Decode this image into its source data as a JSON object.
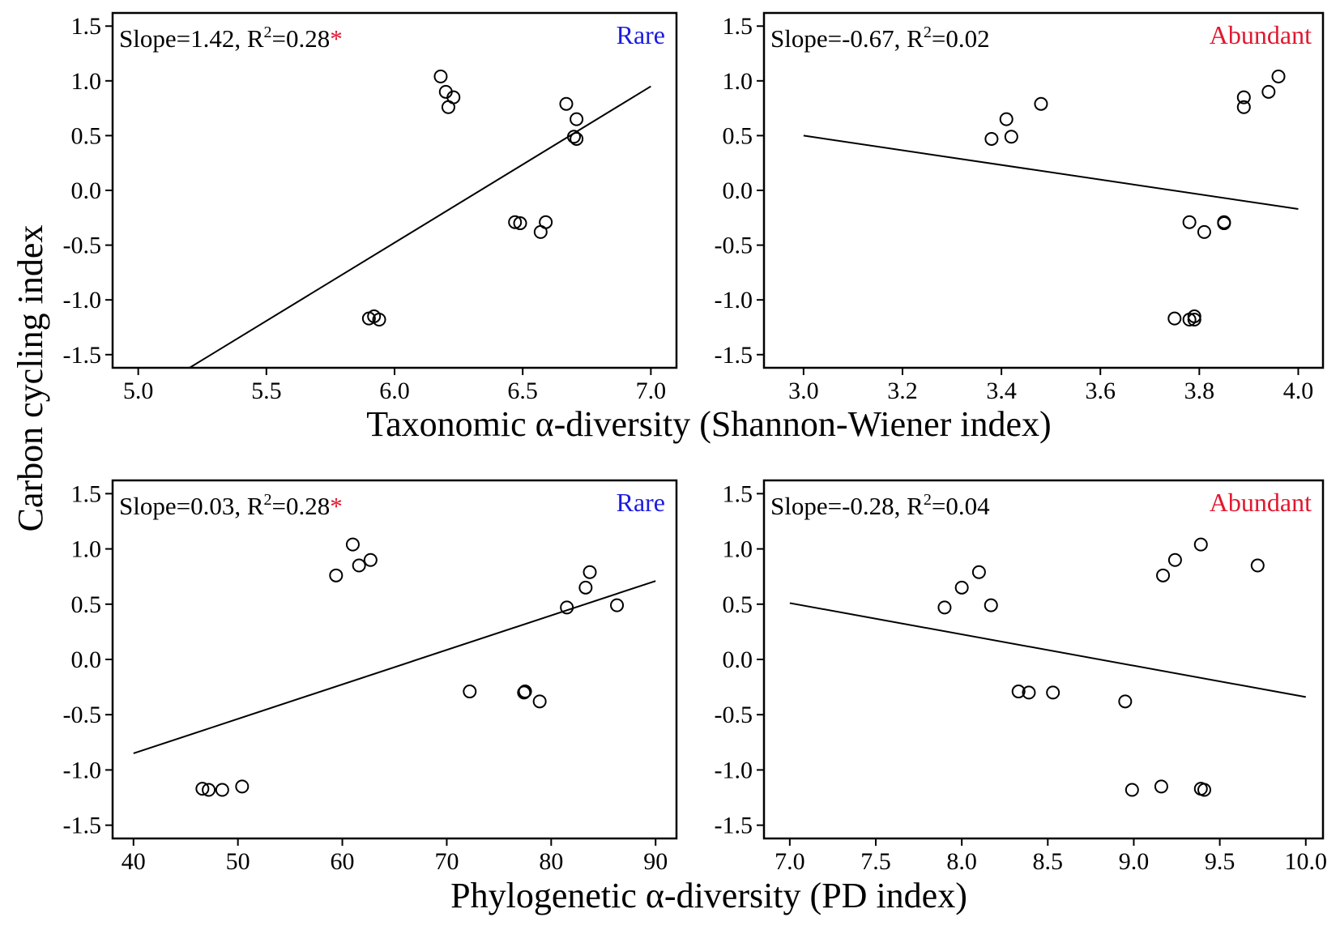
{
  "y_axis_title": "Carbon cycling index",
  "x_axis_title_top": "Taxonomic α-diversity (Shannon-Wiener index)",
  "x_axis_title_bottom": "Phylogenetic α-diversity (PD index)",
  "colors": {
    "rare": "#1a1adf",
    "abundant": "#e0182f",
    "significance": "#e0182f"
  },
  "chart_data": [
    {
      "type": "scatter",
      "id": "taxonomic-rare",
      "annotation": {
        "prefix": "Slope=1.42, R",
        "sup": "2",
        "suffix": "=0.28",
        "star": "*"
      },
      "group_label": "Rare",
      "group_color": "#1a1adf",
      "xlim": [
        4.9,
        7.1
      ],
      "ylim": [
        -1.62,
        1.62
      ],
      "xticks": [
        5.0,
        5.5,
        6.0,
        6.5,
        7.0
      ],
      "xtick_labels": [
        "5.0",
        "5.5",
        "6.0",
        "6.5",
        "7.0"
      ],
      "yticks": [
        1.5,
        1.0,
        0.5,
        0.0,
        -0.5,
        -1.0,
        -1.5
      ],
      "ytick_labels": [
        "1.5",
        "1.0",
        "0.5",
        "0.0",
        "-0.5",
        "-1.0",
        "-1.5"
      ],
      "fit": {
        "x1": 5.2,
        "y1": -1.62,
        "x2": 7.0,
        "y2": 0.95
      },
      "points": [
        [
          6.18,
          1.04
        ],
        [
          6.2,
          0.9
        ],
        [
          6.23,
          0.85
        ],
        [
          6.21,
          0.76
        ],
        [
          6.67,
          0.79
        ],
        [
          6.71,
          0.65
        ],
        [
          6.7,
          0.49
        ],
        [
          6.71,
          0.47
        ],
        [
          6.47,
          -0.29
        ],
        [
          6.49,
          -0.3
        ],
        [
          6.59,
          -0.29
        ],
        [
          6.57,
          -0.38
        ],
        [
          5.9,
          -1.17
        ],
        [
          5.92,
          -1.15
        ],
        [
          5.94,
          -1.18
        ]
      ]
    },
    {
      "type": "scatter",
      "id": "taxonomic-abundant",
      "annotation": {
        "prefix": "Slope=-0.67, R",
        "sup": "2",
        "suffix": "=0.02",
        "star": ""
      },
      "group_label": "Abundant",
      "group_color": "#e0182f",
      "xlim": [
        2.92,
        4.05
      ],
      "ylim": [
        -1.62,
        1.62
      ],
      "xticks": [
        3.0,
        3.2,
        3.4,
        3.6,
        3.8,
        4.0
      ],
      "xtick_labels": [
        "3.0",
        "3.2",
        "3.4",
        "3.6",
        "3.8",
        "4.0"
      ],
      "yticks": [
        1.5,
        1.0,
        0.5,
        0.0,
        -0.5,
        -1.0,
        -1.5
      ],
      "ytick_labels": [
        "1.5",
        "1.0",
        "0.5",
        "0.0",
        "-0.5",
        "-1.0",
        "-1.5"
      ],
      "fit": {
        "x1": 3.0,
        "y1": 0.5,
        "x2": 4.0,
        "y2": -0.17
      },
      "points": [
        [
          3.96,
          1.04
        ],
        [
          3.94,
          0.9
        ],
        [
          3.89,
          0.85
        ],
        [
          3.89,
          0.76
        ],
        [
          3.48,
          0.79
        ],
        [
          3.41,
          0.65
        ],
        [
          3.42,
          0.49
        ],
        [
          3.38,
          0.47
        ],
        [
          3.78,
          -0.29
        ],
        [
          3.85,
          -0.3
        ],
        [
          3.85,
          -0.29
        ],
        [
          3.81,
          -0.38
        ],
        [
          3.75,
          -1.17
        ],
        [
          3.78,
          -1.18
        ],
        [
          3.79,
          -1.15
        ],
        [
          3.79,
          -1.18
        ]
      ]
    },
    {
      "type": "scatter",
      "id": "phylogenetic-rare",
      "annotation": {
        "prefix": "Slope=0.03, R",
        "sup": "2",
        "suffix": "=0.28",
        "star": "*"
      },
      "group_label": "Rare",
      "group_color": "#1a1adf",
      "xlim": [
        38,
        92
      ],
      "ylim": [
        -1.62,
        1.62
      ],
      "xticks": [
        40,
        50,
        60,
        70,
        80,
        90
      ],
      "xtick_labels": [
        "40",
        "50",
        "60",
        "70",
        "80",
        "90"
      ],
      "yticks": [
        1.5,
        1.0,
        0.5,
        0.0,
        -0.5,
        -1.0,
        -1.5
      ],
      "ytick_labels": [
        "1.5",
        "1.0",
        "0.5",
        "0.0",
        "-0.5",
        "-1.0",
        "-1.5"
      ],
      "fit": {
        "x1": 40,
        "y1": -0.85,
        "x2": 90,
        "y2": 0.71
      },
      "points": [
        [
          61.0,
          1.04
        ],
        [
          62.7,
          0.9
        ],
        [
          61.6,
          0.85
        ],
        [
          59.4,
          0.76
        ],
        [
          83.7,
          0.79
        ],
        [
          83.3,
          0.65
        ],
        [
          86.3,
          0.49
        ],
        [
          81.5,
          0.47
        ],
        [
          72.2,
          -0.29
        ],
        [
          77.4,
          -0.3
        ],
        [
          77.5,
          -0.29
        ],
        [
          78.9,
          -0.38
        ],
        [
          46.6,
          -1.17
        ],
        [
          47.2,
          -1.18
        ],
        [
          48.5,
          -1.18
        ],
        [
          50.4,
          -1.15
        ]
      ]
    },
    {
      "type": "scatter",
      "id": "phylogenetic-abundant",
      "annotation": {
        "prefix": "Slope=-0.28, R",
        "sup": "2",
        "suffix": "=0.04",
        "star": ""
      },
      "group_label": "Abundant",
      "group_color": "#e0182f",
      "xlim": [
        6.85,
        10.1
      ],
      "ylim": [
        -1.62,
        1.62
      ],
      "xticks": [
        7.0,
        7.5,
        8.0,
        8.5,
        9.0,
        9.5,
        10.0
      ],
      "xtick_labels": [
        "7.0",
        "7.5",
        "8.0",
        "8.5",
        "9.0",
        "9.5",
        "10.0"
      ],
      "yticks": [
        1.5,
        1.0,
        0.5,
        0.0,
        -0.5,
        -1.0,
        -1.5
      ],
      "ytick_labels": [
        "1.5",
        "1.0",
        "0.5",
        "0.0",
        "-0.5",
        "-1.0",
        "-1.5"
      ],
      "fit": {
        "x1": 7.0,
        "y1": 0.51,
        "x2": 10.0,
        "y2": -0.34
      },
      "points": [
        [
          9.39,
          1.04
        ],
        [
          9.24,
          0.9
        ],
        [
          9.72,
          0.85
        ],
        [
          9.17,
          0.76
        ],
        [
          8.1,
          0.79
        ],
        [
          8.0,
          0.65
        ],
        [
          8.17,
          0.49
        ],
        [
          7.9,
          0.47
        ],
        [
          8.33,
          -0.29
        ],
        [
          8.39,
          -0.3
        ],
        [
          8.53,
          -0.3
        ],
        [
          8.95,
          -0.38
        ],
        [
          8.99,
          -1.18
        ],
        [
          9.16,
          -1.15
        ],
        [
          9.39,
          -1.17
        ],
        [
          9.41,
          -1.18
        ]
      ]
    }
  ]
}
